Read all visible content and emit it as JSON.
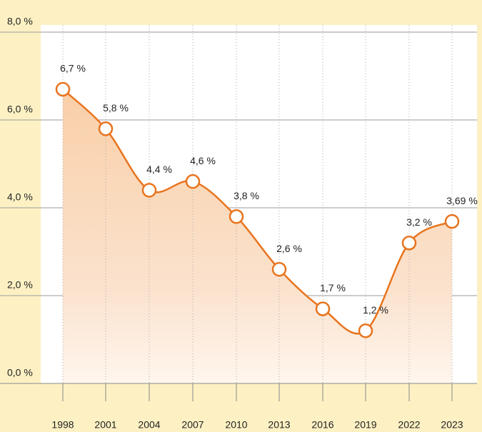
{
  "chart_data": {
    "type": "line",
    "categories": [
      "1998",
      "2001",
      "2004",
      "2007",
      "2010",
      "2013",
      "2016",
      "2019",
      "2022",
      "2023"
    ],
    "values": [
      6.7,
      5.8,
      4.4,
      4.6,
      3.8,
      2.6,
      1.7,
      1.2,
      3.2,
      3.69
    ],
    "value_labels": [
      "6,7 %",
      "5,8 %",
      "4,4 %",
      "4,6 %",
      "3,8 %",
      "2,6 %",
      "1,7 %",
      "1,2 %",
      "3,2 %",
      "3,69 %"
    ],
    "color": "#e8741e",
    "ylim": [
      0,
      8
    ],
    "yticks": [
      {
        "value": 0,
        "label": "0,0 %"
      },
      {
        "value": 2,
        "label": "2,0 %"
      },
      {
        "value": 4,
        "label": "4,0 %"
      },
      {
        "value": 6,
        "label": "6,0 %"
      },
      {
        "value": 8,
        "label": "8,0 %"
      }
    ],
    "grid": true
  }
}
